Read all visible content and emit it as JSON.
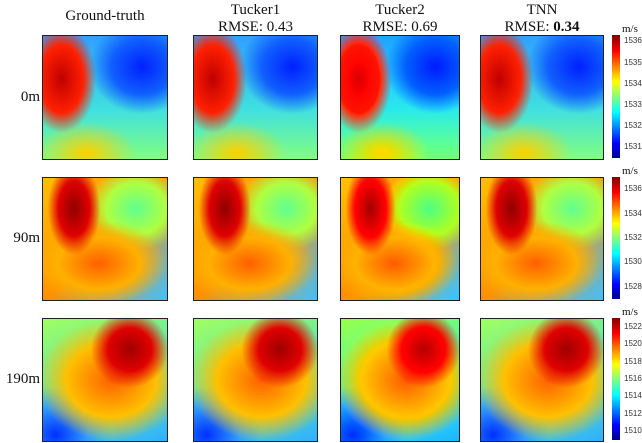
{
  "chart_data": {
    "type": "heatmap",
    "columns": [
      {
        "title": "Ground-truth",
        "rmse_label": "",
        "rmse": ""
      },
      {
        "title": "Tucker1",
        "rmse_label": "RMSE: ",
        "rmse": "0.43"
      },
      {
        "title": "Tucker2",
        "rmse_label": "RMSE: ",
        "rmse": "0.69"
      },
      {
        "title": "TNN",
        "rmse_label": "RMSE: ",
        "rmse": "0.34",
        "best": true
      }
    ],
    "rows": [
      {
        "depth": "0m",
        "unit": "m/s",
        "range": [
          1530.5,
          1536.3
        ],
        "ticks": [
          "1536",
          "1535",
          "1534",
          "1533",
          "1532",
          "1531"
        ]
      },
      {
        "depth": "90m",
        "unit": "m/s",
        "range": [
          1527,
          1537
        ],
        "ticks": [
          "1536",
          "1534",
          "1532",
          "1530",
          "1528"
        ]
      },
      {
        "depth": "190m",
        "unit": "m/s",
        "range": [
          1509,
          1523
        ],
        "ticks": [
          "1522",
          "1520",
          "1518",
          "1516",
          "1514",
          "1512",
          "1510"
        ]
      }
    ],
    "colormap": "jet"
  }
}
